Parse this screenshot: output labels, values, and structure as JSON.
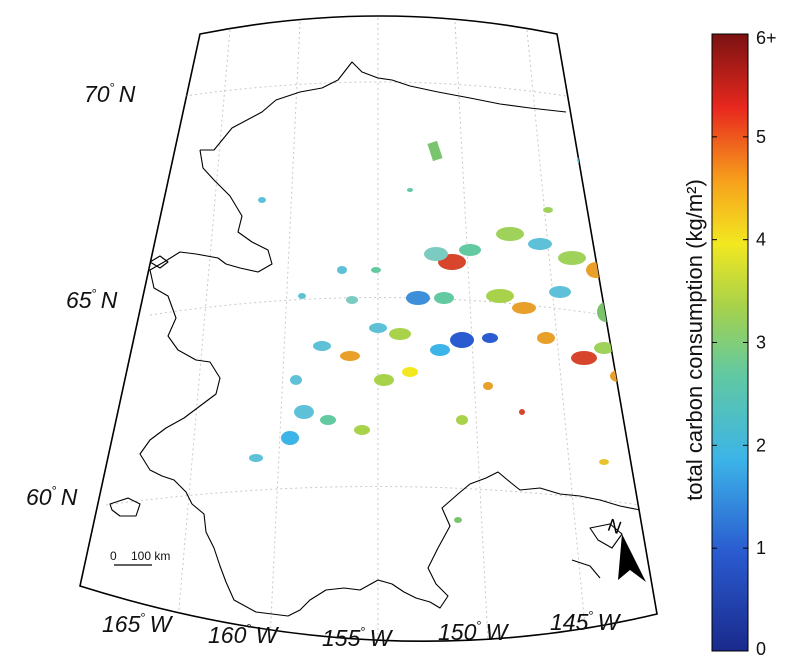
{
  "map": {
    "lat_labels": [
      {
        "value": "70",
        "hemi": "N"
      },
      {
        "value": "65",
        "hemi": "N"
      },
      {
        "value": "60",
        "hemi": "N"
      }
    ],
    "lon_labels": [
      {
        "value": "165",
        "hemi": "W"
      },
      {
        "value": "160",
        "hemi": "W"
      },
      {
        "value": "155",
        "hemi": "W"
      },
      {
        "value": "150",
        "hemi": "W"
      },
      {
        "value": "145",
        "hemi": "W"
      }
    ],
    "degree_symbol": "°",
    "scale_bar": {
      "zero": "0",
      "distance": "100 km"
    },
    "north_arrow": {
      "label": "N"
    }
  },
  "colorbar": {
    "title": "total carbon consumption (kg/m²)",
    "min": 0,
    "max": 6,
    "ticks": [
      "0",
      "1",
      "2",
      "3",
      "4",
      "5",
      "6+"
    ],
    "colors": [
      "#1a2a8c",
      "#2a5bd0",
      "#3cb4e8",
      "#62c9a0",
      "#a8d24a",
      "#f2e820",
      "#f7a21c",
      "#e8281e",
      "#7a1212"
    ]
  }
}
